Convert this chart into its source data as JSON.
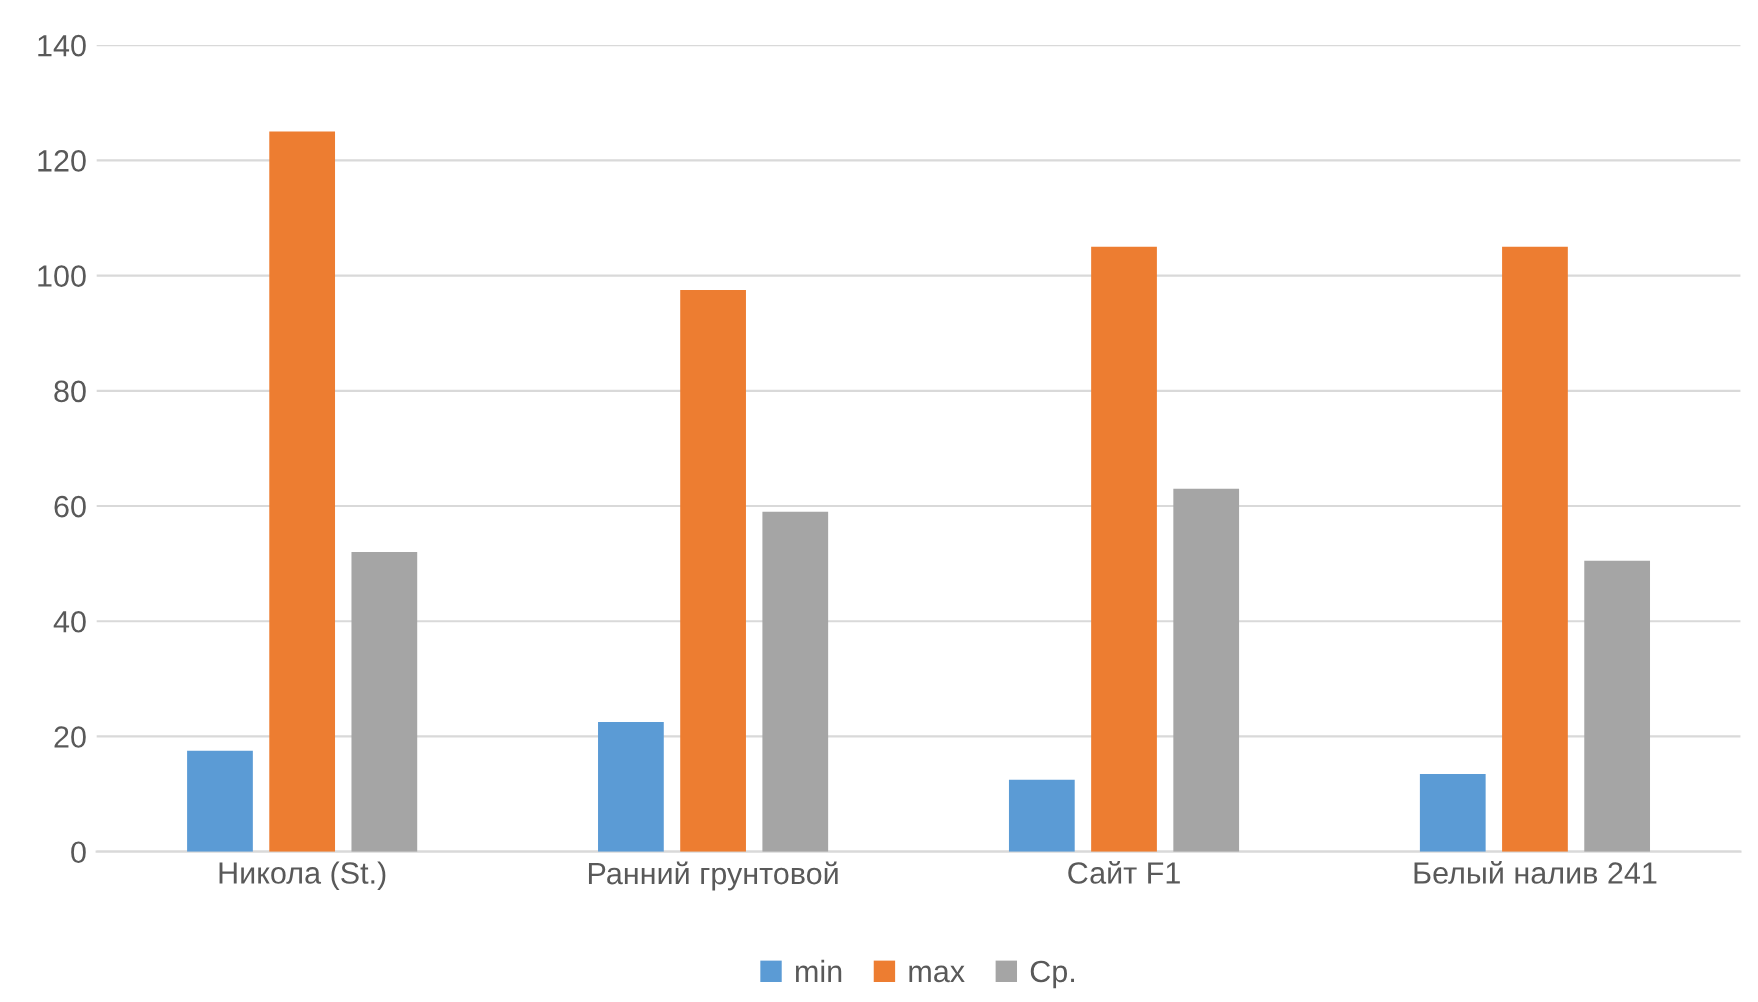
{
  "chart_data": {
    "type": "bar",
    "categories": [
      "Никола (St.)",
      "Ранний грунтовой",
      "Сайт F1",
      "Белый налив 241"
    ],
    "series": [
      {
        "name": "min",
        "color": "#5b9bd5",
        "values": [
          17.5,
          22.5,
          12.5,
          13.5
        ]
      },
      {
        "name": "max",
        "color": "#ed7d31",
        "values": [
          125,
          97.5,
          105,
          105
        ]
      },
      {
        "name": "Ср.",
        "color": "#a5a5a5",
        "values": [
          52,
          59,
          63,
          50.5
        ]
      }
    ],
    "ylim": [
      0,
      140
    ],
    "yticks": [
      0,
      20,
      40,
      60,
      80,
      100,
      120,
      140
    ],
    "grid": "y",
    "legend": "bottom"
  }
}
